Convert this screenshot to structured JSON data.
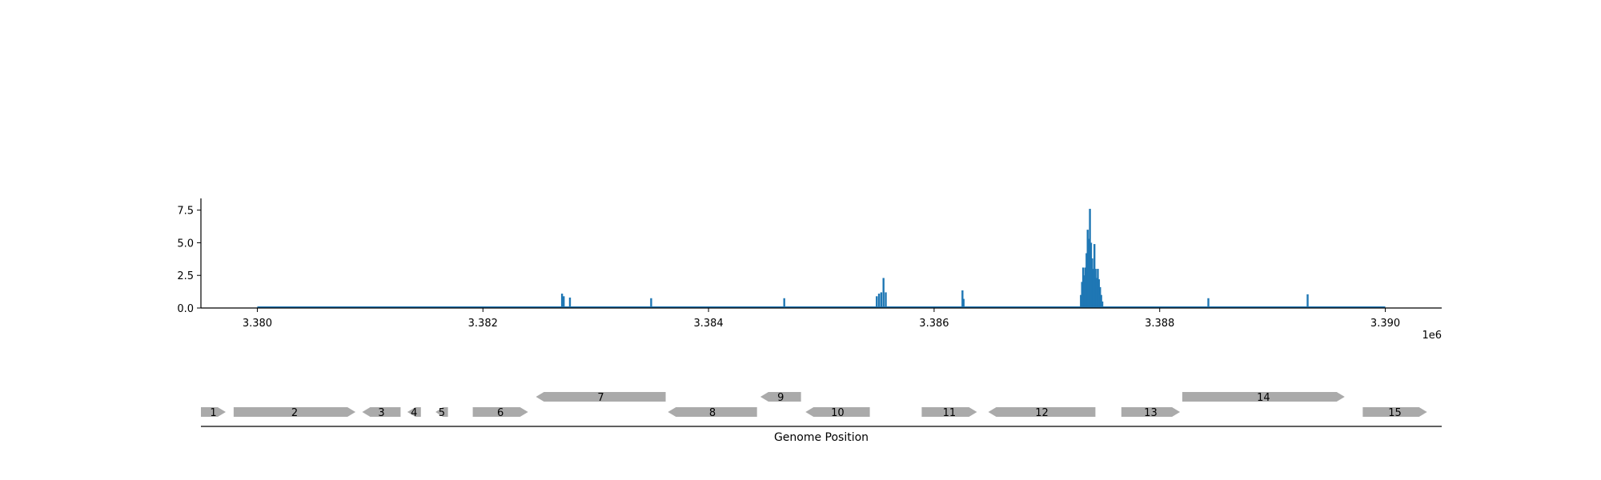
{
  "chart_data": [
    {
      "type": "bar",
      "title": "",
      "xlabel": "",
      "ylabel": "",
      "x_offset_label": "1e6",
      "xlim": [
        3379500,
        3390500
      ],
      "ylim": [
        0,
        8.4
      ],
      "x_ticks": [
        3380000,
        3382000,
        3384000,
        3386000,
        3388000,
        3390000
      ],
      "x_tick_labels": [
        "3.380",
        "3.382",
        "3.384",
        "3.386",
        "3.388",
        "3.390"
      ],
      "y_ticks": [
        0.0,
        2.5,
        5.0,
        7.5
      ],
      "y_tick_labels": [
        "0.0",
        "2.5",
        "5.0",
        "7.5"
      ],
      "color": "#1f77b4",
      "baseline": {
        "x_start": 3380000,
        "x_end": 3390000
      },
      "bars": [
        {
          "x": 3382700,
          "y": 1.1
        },
        {
          "x": 3382715,
          "y": 0.9
        },
        {
          "x": 3382770,
          "y": 0.8
        },
        {
          "x": 3383490,
          "y": 0.75
        },
        {
          "x": 3384670,
          "y": 0.75
        },
        {
          "x": 3385490,
          "y": 0.9
        },
        {
          "x": 3385510,
          "y": 1.1
        },
        {
          "x": 3385530,
          "y": 1.2
        },
        {
          "x": 3385550,
          "y": 2.3
        },
        {
          "x": 3385570,
          "y": 1.2
        },
        {
          "x": 3386250,
          "y": 1.35
        },
        {
          "x": 3386260,
          "y": 0.7
        },
        {
          "x": 3387300,
          "y": 1.0
        },
        {
          "x": 3387310,
          "y": 2.0
        },
        {
          "x": 3387320,
          "y": 3.1
        },
        {
          "x": 3387330,
          "y": 2.5
        },
        {
          "x": 3387340,
          "y": 3.1
        },
        {
          "x": 3387350,
          "y": 4.2
        },
        {
          "x": 3387360,
          "y": 6.0
        },
        {
          "x": 3387370,
          "y": 5.3
        },
        {
          "x": 3387380,
          "y": 7.6
        },
        {
          "x": 3387390,
          "y": 5.0
        },
        {
          "x": 3387400,
          "y": 3.8
        },
        {
          "x": 3387410,
          "y": 3.0
        },
        {
          "x": 3387420,
          "y": 4.9
        },
        {
          "x": 3387430,
          "y": 3.0
        },
        {
          "x": 3387440,
          "y": 2.3
        },
        {
          "x": 3387450,
          "y": 3.0
        },
        {
          "x": 3387460,
          "y": 2.2
        },
        {
          "x": 3387470,
          "y": 1.6
        },
        {
          "x": 3387480,
          "y": 1.0
        },
        {
          "x": 3387490,
          "y": 0.5
        },
        {
          "x": 3388430,
          "y": 0.75
        },
        {
          "x": 3389310,
          "y": 1.05
        }
      ]
    },
    {
      "type": "gene_track",
      "xlabel": "Genome Position",
      "color": "#aaaaaa",
      "genes": [
        {
          "label": "1",
          "start": 3379500,
          "end": 3379720,
          "strand": "+",
          "row": 0
        },
        {
          "label": "2",
          "start": 3379790,
          "end": 3380870,
          "strand": "+",
          "row": 0
        },
        {
          "label": "3",
          "start": 3380930,
          "end": 3381270,
          "strand": "-",
          "row": 0
        },
        {
          "label": "4",
          "start": 3381330,
          "end": 3381450,
          "strand": "-",
          "row": 0
        },
        {
          "label": "5",
          "start": 3381580,
          "end": 3381690,
          "strand": "-",
          "row": 0
        },
        {
          "label": "6",
          "start": 3381910,
          "end": 3382400,
          "strand": "+",
          "row": 0
        },
        {
          "label": "7",
          "start": 3382470,
          "end": 3383620,
          "strand": "-",
          "row": 1
        },
        {
          "label": "8",
          "start": 3383640,
          "end": 3384430,
          "strand": "-",
          "row": 0
        },
        {
          "label": "9",
          "start": 3384460,
          "end": 3384820,
          "strand": "-",
          "row": 1
        },
        {
          "label": "10",
          "start": 3384860,
          "end": 3385430,
          "strand": "-",
          "row": 0
        },
        {
          "label": "11",
          "start": 3385890,
          "end": 3386380,
          "strand": "+",
          "row": 0
        },
        {
          "label": "12",
          "start": 3386480,
          "end": 3387430,
          "strand": "-",
          "row": 0
        },
        {
          "label": "13",
          "start": 3387660,
          "end": 3388180,
          "strand": "+",
          "row": 0
        },
        {
          "label": "14",
          "start": 3388200,
          "end": 3389640,
          "strand": "+",
          "row": 1
        },
        {
          "label": "15",
          "start": 3389800,
          "end": 3390370,
          "strand": "+",
          "row": 0
        }
      ]
    }
  ]
}
